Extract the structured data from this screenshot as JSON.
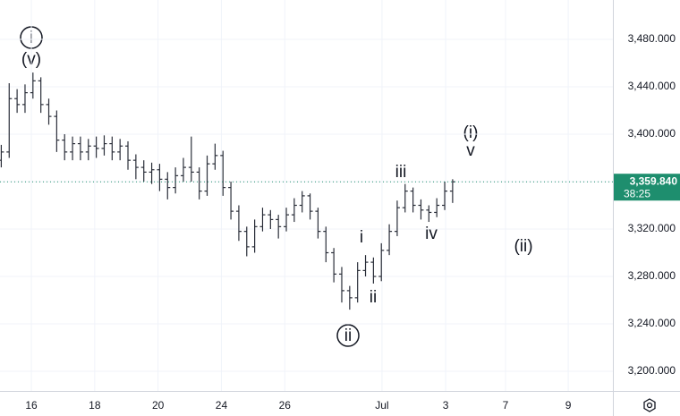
{
  "chart_data": {
    "type": "ohlc",
    "x": [
      -0.95,
      -0.7,
      -0.45,
      -0.2,
      0.05,
      0.3,
      0.55,
      0.8,
      1.05,
      1.3,
      1.55,
      1.8,
      2.05,
      2.3,
      2.55,
      2.8,
      3.05,
      3.3,
      3.55,
      3.8,
      4.05,
      4.3,
      4.55,
      4.8,
      5.05,
      5.3,
      5.55,
      5.8,
      6.05,
      6.3,
      6.55,
      6.8,
      7.05,
      7.3,
      7.55,
      7.8,
      8.05,
      8.3,
      8.55,
      8.8,
      9.05,
      9.3,
      9.55,
      9.8,
      10.05,
      10.3,
      10.55,
      10.8,
      11.05,
      11.3,
      11.55,
      11.8,
      12.05,
      12.3,
      12.55,
      12.8,
      13.05,
      13.3
    ],
    "open": [
      3378,
      3385,
      3430,
      3425,
      3435,
      3445,
      3425,
      3415,
      3395,
      3385,
      3392,
      3385,
      3390,
      3388,
      3392,
      3385,
      3390,
      3378,
      3372,
      3368,
      3370,
      3362,
      3355,
      3365,
      3372,
      3368,
      3352,
      3375,
      3382,
      3355,
      3335,
      3318,
      3305,
      3322,
      3332,
      3328,
      3322,
      3332,
      3340,
      3348,
      3335,
      3318,
      3300,
      3282,
      3268,
      3262,
      3285,
      3292,
      3280,
      3302,
      3318,
      3338,
      3352,
      3340,
      3336,
      3334,
      3340,
      3352
    ],
    "high": [
      3391,
      3443,
      3438,
      3442,
      3452,
      3448,
      3430,
      3420,
      3400,
      3398,
      3398,
      3396,
      3398,
      3399,
      3398,
      3396,
      3394,
      3383,
      3378,
      3376,
      3375,
      3368,
      3372,
      3380,
      3398,
      3372,
      3382,
      3392,
      3386,
      3360,
      3340,
      3322,
      3328,
      3338,
      3336,
      3332,
      3338,
      3346,
      3352,
      3350,
      3338,
      3322,
      3304,
      3288,
      3272,
      3292,
      3298,
      3296,
      3308,
      3324,
      3344,
      3358,
      3355,
      3345,
      3340,
      3346,
      3360,
      3362
    ],
    "low": [
      3372,
      3380,
      3418,
      3418,
      3430,
      3418,
      3408,
      3385,
      3378,
      3378,
      3378,
      3378,
      3380,
      3382,
      3378,
      3378,
      3370,
      3362,
      3360,
      3358,
      3352,
      3345,
      3350,
      3360,
      3360,
      3345,
      3348,
      3370,
      3348,
      3328,
      3310,
      3297,
      3300,
      3318,
      3320,
      3312,
      3318,
      3326,
      3334,
      3328,
      3312,
      3292,
      3275,
      3258,
      3252,
      3258,
      3280,
      3274,
      3276,
      3298,
      3314,
      3334,
      3334,
      3328,
      3326,
      3330,
      3336,
      3342
    ],
    "close": [
      3385,
      3430,
      3425,
      3435,
      3445,
      3425,
      3415,
      3395,
      3385,
      3392,
      3385,
      3390,
      3388,
      3392,
      3385,
      3390,
      3378,
      3372,
      3368,
      3370,
      3362,
      3355,
      3365,
      3372,
      3368,
      3352,
      3375,
      3382,
      3355,
      3335,
      3318,
      3305,
      3322,
      3332,
      3328,
      3322,
      3332,
      3340,
      3348,
      3335,
      3318,
      3300,
      3282,
      3268,
      3262,
      3285,
      3292,
      3280,
      3302,
      3318,
      3338,
      3352,
      3340,
      3336,
      3334,
      3340,
      3352,
      3359.84
    ],
    "color": "#2a2e39",
    "xlim": [
      -0.99,
      18.36
    ],
    "xticks": [
      {
        "value": 0,
        "label": "16"
      },
      {
        "value": 2,
        "label": "18"
      },
      {
        "value": 4,
        "label": "20"
      },
      {
        "value": 6,
        "label": "24"
      },
      {
        "value": 8,
        "label": "26"
      },
      {
        "value": 11.07,
        "label": "Jul"
      },
      {
        "value": 13.08,
        "label": "3"
      },
      {
        "value": 14.97,
        "label": "7"
      },
      {
        "value": 16.95,
        "label": "9"
      }
    ],
    "ylim": [
      3183.4,
      3513.2
    ],
    "yticks": [
      {
        "value": 3200,
        "label": "3,200.000"
      },
      {
        "value": 3240,
        "label": "3,240.000"
      },
      {
        "value": 3280,
        "label": "3,280.000"
      },
      {
        "value": 3320,
        "label": "3,320.000"
      },
      {
        "value": 3360,
        "label": "3,360.000"
      },
      {
        "value": 3400,
        "label": "3,400.000"
      },
      {
        "value": 3440,
        "label": "3,440.000"
      },
      {
        "value": 3480,
        "label": "3,480.000"
      }
    ],
    "grid": true,
    "last_price": {
      "value": 3359.84,
      "label": "3,359.840",
      "color": "#1e8e6e"
    },
    "countdown": "38:25",
    "annotations": [
      "i",
      "(v)",
      "(i)",
      "v",
      "iii",
      "i",
      "iv",
      "ii",
      "ii",
      "(ii)"
    ]
  }
}
